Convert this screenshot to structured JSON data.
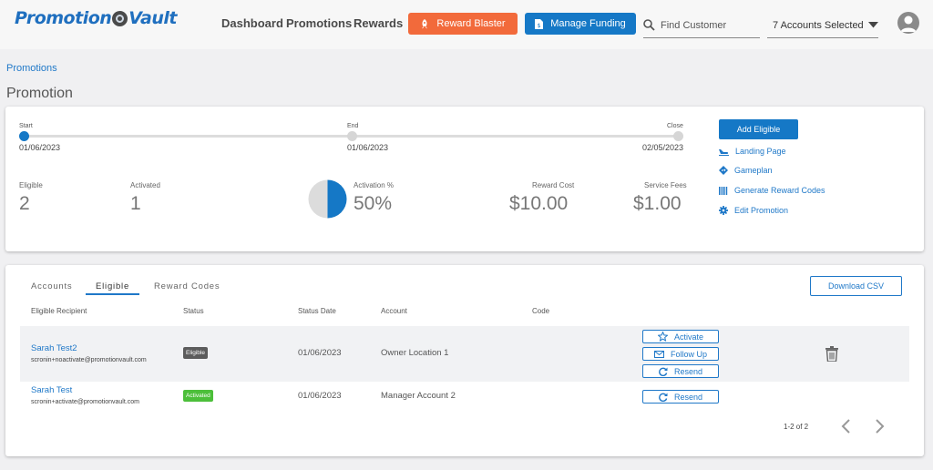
{
  "header": {
    "logo_left": "Promotion",
    "logo_right": "Vault",
    "nav": [
      "Dashboard",
      "Promotions",
      "Rewards"
    ],
    "reward_blaster_label": "Reward Blaster",
    "manage_funding_label": "Manage Funding",
    "search_placeholder": "Find Customer",
    "accounts_selected": "7 Accounts Selected"
  },
  "breadcrumb": "Promotions",
  "page_title": "Promotion",
  "timeline": {
    "start_label": "Start",
    "start_date": "01/06/2023",
    "end_label": "End",
    "end_date": "01/06/2023",
    "close_label": "Close",
    "close_date": "02/05/2023"
  },
  "stats": {
    "eligible_label": "Eligible",
    "eligible_value": "2",
    "activated_label": "Activated",
    "activated_value": "1",
    "activation_label": "Activation %",
    "activation_value": "50%",
    "activation_fraction": 0.5,
    "reward_cost_label": "Reward Cost",
    "reward_cost_value": "$10.00",
    "service_fees_label": "Service Fees",
    "service_fees_value": "$1.00"
  },
  "side_actions": {
    "add_eligible": "Add Eligible",
    "landing_page": "Landing Page",
    "gameplan": "Gameplan",
    "generate_codes": "Generate Reward Codes",
    "edit_promotion": "Edit Promotion"
  },
  "tabs": [
    "Accounts",
    "Eligible",
    "Reward Codes"
  ],
  "download_csv": "Download CSV",
  "table": {
    "headers": [
      "Eligible Recipient",
      "Status",
      "Status Date",
      "Account",
      "Code"
    ],
    "rows": [
      {
        "name": "Sarah Test2",
        "email": "scronin+noactivate@promotionvault.com",
        "status": "Eligible",
        "date": "01/06/2023",
        "account": "Owner Location 1",
        "code": ""
      },
      {
        "name": "Sarah Test",
        "email": "scronin+activate@promotionvault.com",
        "status": "Activated",
        "date": "01/06/2023",
        "account": "Manager Account 2",
        "code": ""
      }
    ],
    "actions": {
      "activate": "Activate",
      "follow_up": "Follow Up",
      "resend": "Resend"
    }
  },
  "pagination": "1-2 of 2",
  "colors": {
    "primary": "#1578c6",
    "orange": "#f26a3b",
    "eligible_badge": "#5c5c5c",
    "activated_badge": "#4cbf3a"
  }
}
